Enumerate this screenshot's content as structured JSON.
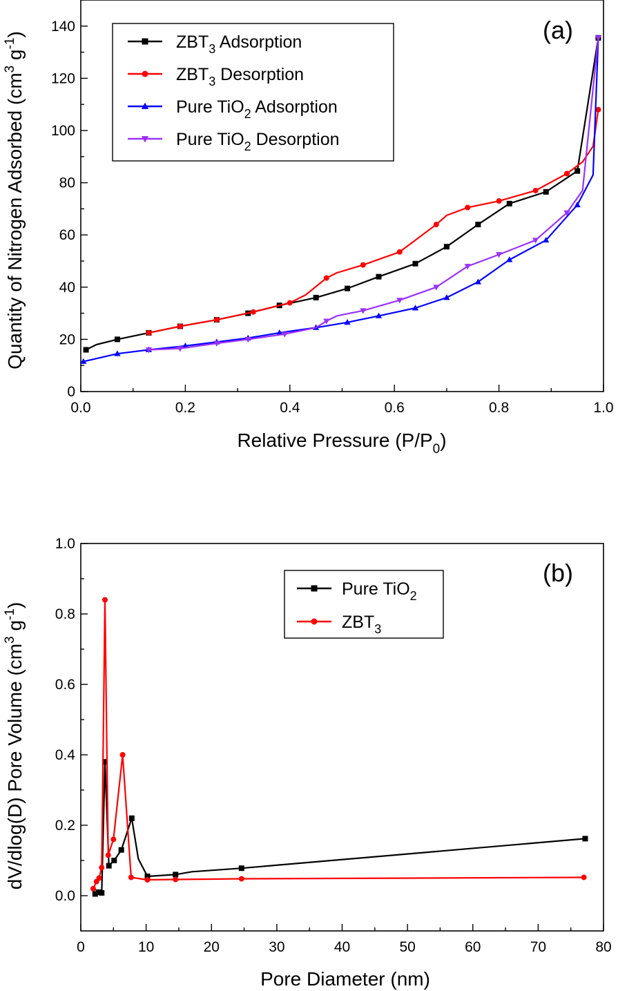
{
  "chart_data": [
    {
      "type": "line",
      "panel_label": "(a)",
      "xlabel": "Relative Pressure (P/P",
      "xlabel_sub": "0",
      "xlabel_tail": ")",
      "ylabel": "Quantity of Nitrogen Adsorbed (cm",
      "ylabel_sup": "3",
      "ylabel_mid": " g",
      "ylabel_sup2": "-1",
      "ylabel_tail": ")",
      "xlim": [
        0.0,
        1.0
      ],
      "ylim": [
        0,
        150
      ],
      "xticks": [
        0.0,
        0.2,
        0.4,
        0.6,
        0.8,
        1.0
      ],
      "xtick_labels": [
        "0.0",
        "0.2",
        "0.4",
        "0.6",
        "0.8",
        "1.0"
      ],
      "yticks": [
        0,
        20,
        40,
        60,
        80,
        100,
        120,
        140
      ],
      "ytick_labels": [
        "0",
        "20",
        "40",
        "60",
        "80",
        "100",
        "120",
        "140"
      ],
      "legend_position": "top-left",
      "series": [
        {
          "name": "ZBT",
          "name_sub": "3",
          "name_tail": " Adsorption",
          "color": "#000000",
          "marker": "square",
          "x": [
            0.01,
            0.03,
            0.07,
            0.13,
            0.19,
            0.26,
            0.32,
            0.38,
            0.45,
            0.51,
            0.57,
            0.64,
            0.7,
            0.76,
            0.82,
            0.89,
            0.95,
            0.99
          ],
          "y": [
            16,
            18,
            20,
            22.5,
            25,
            27.5,
            30,
            33,
            36,
            39.5,
            44,
            49,
            55.5,
            64,
            72,
            76.5,
            84.5,
            135.5
          ],
          "marker_x": [
            0.01,
            0.07,
            0.13,
            0.19,
            0.26,
            0.32,
            0.38,
            0.45,
            0.51,
            0.57,
            0.64,
            0.7,
            0.76,
            0.82,
            0.89,
            0.95,
            0.99
          ],
          "marker_y": [
            16,
            20,
            22.5,
            25,
            27.5,
            30,
            33,
            36,
            39.5,
            44,
            49,
            55.5,
            64,
            72,
            76.5,
            84.5,
            135.5
          ]
        },
        {
          "name": "ZBT",
          "name_sub": "3",
          "name_tail": " Desorption",
          "color": "#ff0000",
          "marker": "circle",
          "x": [
            0.13,
            0.19,
            0.26,
            0.33,
            0.4,
            0.43,
            0.47,
            0.49,
            0.54,
            0.61,
            0.64,
            0.68,
            0.7,
            0.74,
            0.8,
            0.87,
            0.93,
            0.96,
            0.98,
            0.99
          ],
          "y": [
            22.5,
            25,
            27.5,
            30.5,
            34,
            37,
            43.5,
            45.5,
            48.5,
            53.5,
            58,
            64,
            67.5,
            70.5,
            73,
            77,
            83.5,
            88,
            94,
            108
          ],
          "marker_x": [
            0.13,
            0.19,
            0.26,
            0.33,
            0.4,
            0.47,
            0.54,
            0.61,
            0.68,
            0.74,
            0.8,
            0.87,
            0.93,
            0.99
          ],
          "marker_y": [
            22.5,
            25,
            27.5,
            30.5,
            34,
            43.5,
            48.5,
            53.5,
            64,
            70.5,
            73,
            77,
            83.5,
            108
          ]
        },
        {
          "name": "Pure TiO",
          "name_sub": "2",
          "name_tail": " Adsorption",
          "color": "#0000ff",
          "marker": "triangle-up",
          "x": [
            0.005,
            0.07,
            0.13,
            0.2,
            0.26,
            0.32,
            0.38,
            0.45,
            0.51,
            0.57,
            0.64,
            0.7,
            0.76,
            0.82,
            0.89,
            0.95,
            0.98,
            0.99
          ],
          "y": [
            11.5,
            14.5,
            16,
            17.5,
            19,
            20.5,
            22.5,
            24.5,
            26.5,
            29,
            32,
            36,
            42,
            50.5,
            58,
            71.5,
            83,
            135
          ],
          "marker_x": [
            0.005,
            0.07,
            0.13,
            0.2,
            0.26,
            0.32,
            0.38,
            0.45,
            0.51,
            0.57,
            0.64,
            0.7,
            0.76,
            0.82,
            0.89,
            0.95
          ],
          "marker_y": [
            11.5,
            14.5,
            16,
            17.5,
            19,
            20.5,
            22.5,
            24.5,
            26.5,
            29,
            32,
            36,
            42,
            50.5,
            58,
            71.5
          ]
        },
        {
          "name": "Pure TiO",
          "name_sub": "2",
          "name_tail": " Desorption",
          "color": "#9b30ff",
          "marker": "triangle-down",
          "x": [
            0.13,
            0.19,
            0.26,
            0.32,
            0.39,
            0.45,
            0.47,
            0.49,
            0.54,
            0.61,
            0.68,
            0.74,
            0.8,
            0.87,
            0.93,
            0.96,
            0.99
          ],
          "y": [
            16,
            16.5,
            18.5,
            20,
            22,
            24.5,
            27,
            29,
            31,
            35,
            40,
            48,
            52.5,
            58,
            68.5,
            77,
            135.5
          ],
          "marker_x": [
            0.13,
            0.19,
            0.26,
            0.32,
            0.39,
            0.47,
            0.54,
            0.61,
            0.68,
            0.74,
            0.8,
            0.87,
            0.93,
            0.99
          ],
          "marker_y": [
            16,
            16.5,
            18.5,
            20,
            22,
            27,
            31,
            35,
            40,
            48,
            52.5,
            58,
            68.5,
            135.5
          ]
        }
      ]
    },
    {
      "type": "line",
      "panel_label": "(b)",
      "xlabel": "Pore Diameter (nm)",
      "ylabel": "dV/dlog(D) Pore Volume (cm",
      "ylabel_sup": "3",
      "ylabel_mid": " g",
      "ylabel_sup2": "-1",
      "ylabel_tail": ")",
      "xlim": [
        0,
        80
      ],
      "ylim": [
        -0.1,
        1.0
      ],
      "xticks": [
        0,
        10,
        20,
        30,
        40,
        50,
        60,
        70,
        80
      ],
      "xtick_labels": [
        "0",
        "10",
        "20",
        "30",
        "40",
        "50",
        "60",
        "70",
        "80"
      ],
      "yticks": [
        0.0,
        0.2,
        0.4,
        0.6,
        0.8,
        1.0
      ],
      "ytick_labels": [
        "0.0",
        "0.2",
        "0.4",
        "0.6",
        "0.8",
        "1.0"
      ],
      "legend_position": "top-center",
      "series": [
        {
          "name": "Pure TiO",
          "name_sub": "2",
          "name_tail": "",
          "color": "#000000",
          "marker": "square",
          "x": [
            2.2,
            2.7,
            3.2,
            3.7,
            4.3,
            5.1,
            6.2,
            7.8,
            8.8,
            10.2,
            14.5,
            17,
            24.6,
            77.2
          ],
          "y": [
            0.005,
            0.01,
            0.008,
            0.38,
            0.085,
            0.1,
            0.13,
            0.22,
            0.105,
            0.055,
            0.06,
            0.068,
            0.078,
            0.162
          ],
          "marker_x": [
            2.2,
            2.7,
            3.2,
            3.7,
            4.3,
            5.1,
            6.2,
            7.8,
            10.2,
            14.5,
            24.6,
            77.2
          ],
          "marker_y": [
            0.005,
            0.01,
            0.008,
            0.38,
            0.085,
            0.1,
            0.13,
            0.22,
            0.055,
            0.06,
            0.078,
            0.162
          ]
        },
        {
          "name": "ZBT",
          "name_sub": "3",
          "name_tail": "",
          "color": "#ff0000",
          "marker": "circle",
          "x": [
            1.9,
            2.4,
            2.8,
            3.2,
            3.7,
            4.2,
            5.0,
            6.4,
            7.7,
            10.2,
            14.5,
            24.6,
            77.0
          ],
          "y": [
            0.02,
            0.04,
            0.05,
            0.08,
            0.84,
            0.115,
            0.16,
            0.4,
            0.052,
            0.045,
            0.046,
            0.048,
            0.052
          ],
          "marker_x": [
            1.9,
            2.4,
            2.8,
            3.2,
            3.7,
            4.2,
            5.0,
            6.4,
            7.7,
            10.2,
            14.5,
            24.6,
            77.0
          ],
          "marker_y": [
            0.02,
            0.04,
            0.05,
            0.08,
            0.84,
            0.115,
            0.16,
            0.4,
            0.052,
            0.045,
            0.046,
            0.048,
            0.052
          ]
        }
      ]
    }
  ]
}
